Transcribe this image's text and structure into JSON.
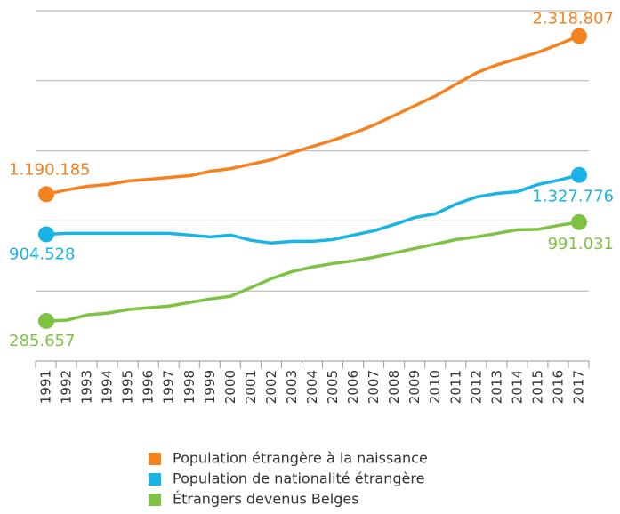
{
  "chart_data": {
    "type": "line",
    "categories": [
      "1991",
      "1992",
      "1993",
      "1994",
      "1995",
      "1996",
      "1997",
      "1998",
      "1999",
      "2000",
      "2001",
      "2002",
      "2003",
      "2004",
      "2005",
      "2006",
      "2007",
      "2008",
      "2009",
      "2010",
      "2011",
      "2012",
      "2013",
      "2014",
      "2015",
      "2016",
      "2017"
    ],
    "series": [
      {
        "name": "Population étrangère à la naissance",
        "color": "#f5821f",
        "values": [
          1190185,
          1221000,
          1247000,
          1260000,
          1285000,
          1297000,
          1310000,
          1323000,
          1354000,
          1373000,
          1405000,
          1437000,
          1487000,
          1532000,
          1576000,
          1627000,
          1684000,
          1753000,
          1823000,
          1892000,
          1975000,
          2057000,
          2114000,
          2158000,
          2203000,
          2260000,
          2318807
        ],
        "value_labels": [
          "1.190.185",
          null,
          null,
          null,
          null,
          null,
          null,
          null,
          null,
          null,
          null,
          null,
          null,
          null,
          null,
          null,
          null,
          null,
          null,
          null,
          null,
          null,
          null,
          null,
          null,
          null,
          "2.318.807"
        ]
      },
      {
        "name": "Population de nationalité étrangère",
        "color": "#1ab3e6",
        "values": [
          904528,
          911000,
          911000,
          911000,
          911000,
          911000,
          911000,
          899000,
          886000,
          899000,
          861000,
          842000,
          854000,
          854000,
          867000,
          899000,
          930000,
          975000,
          1025000,
          1051000,
          1120000,
          1171000,
          1196000,
          1209000,
          1260000,
          1291000,
          1327776
        ],
        "value_labels": [
          "904.528",
          null,
          null,
          null,
          null,
          null,
          null,
          null,
          null,
          null,
          null,
          null,
          null,
          null,
          null,
          null,
          null,
          null,
          null,
          null,
          null,
          null,
          null,
          null,
          null,
          null,
          "1.327.776"
        ]
      },
      {
        "name": "Étrangers devenus Belges",
        "color": "#7dc242",
        "values": [
          285657,
          291000,
          329000,
          342000,
          367000,
          380000,
          392000,
          418000,
          443000,
          462000,
          525000,
          589000,
          639000,
          671000,
          696000,
          715000,
          741000,
          772000,
          804000,
          835000,
          867000,
          886000,
          911000,
          937000,
          940000,
          968000,
          991031
        ],
        "value_labels": [
          "285.657",
          null,
          null,
          null,
          null,
          null,
          null,
          null,
          null,
          null,
          null,
          null,
          null,
          null,
          null,
          null,
          null,
          null,
          null,
          null,
          null,
          null,
          null,
          null,
          null,
          null,
          "991.031"
        ]
      }
    ],
    "ylim": [
      0,
      2500000
    ],
    "yticks": [
      0,
      500000,
      1000000,
      1500000,
      2000000,
      2500000
    ],
    "grid": true
  }
}
